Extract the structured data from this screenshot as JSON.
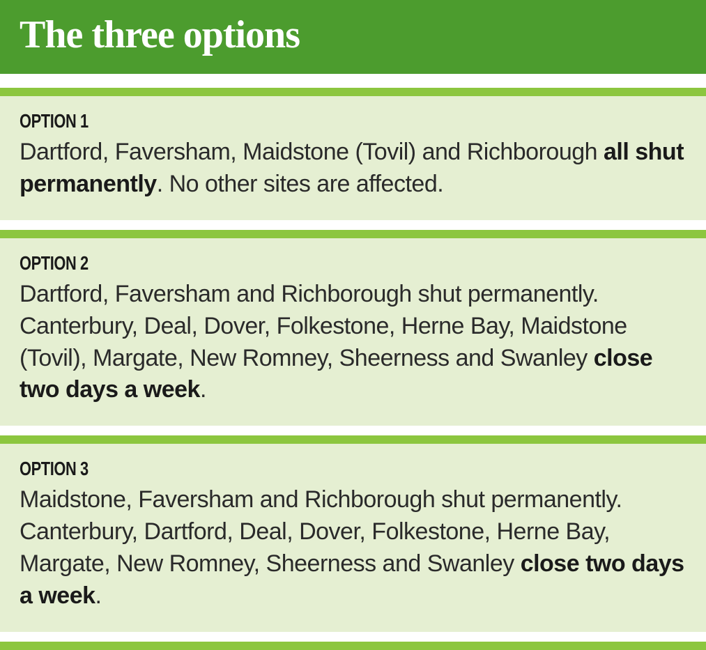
{
  "header": {
    "title": "The three options",
    "bg_color": "#4c9c2e",
    "title_color": "#ffffff",
    "title_fontsize": 56,
    "title_font": "Georgia serif slab"
  },
  "divider_color": "#8cc63f",
  "block_bg_color": "#e5efd2",
  "body_fontsize": 34,
  "label_fontsize": 28,
  "options": [
    {
      "label": "OPTION 1",
      "text_pre": "Dartford, Faversham, Maidstone (Tovil) and Richborough ",
      "text_bold": "all shut permanently",
      "text_post": ". No other sites are affected."
    },
    {
      "label": "OPTION 2",
      "text_pre": "Dartford, Faversham and Richborough shut permanently. Canterbury, Deal, Dover, Folkestone, Herne Bay, Maidstone (Tovil), Margate, New Romney, Sheerness and Swanley ",
      "text_bold": "close two days a week",
      "text_post": "."
    },
    {
      "label": "OPTION 3",
      "text_pre": "Maidstone, Faversham and Richborough shut permanently. Canterbury, Dartford, Deal, Dover, Folkestone, Herne Bay, Margate, New Romney, Sheerness and Swanley ",
      "text_bold": "close two days a week",
      "text_post": "."
    }
  ]
}
